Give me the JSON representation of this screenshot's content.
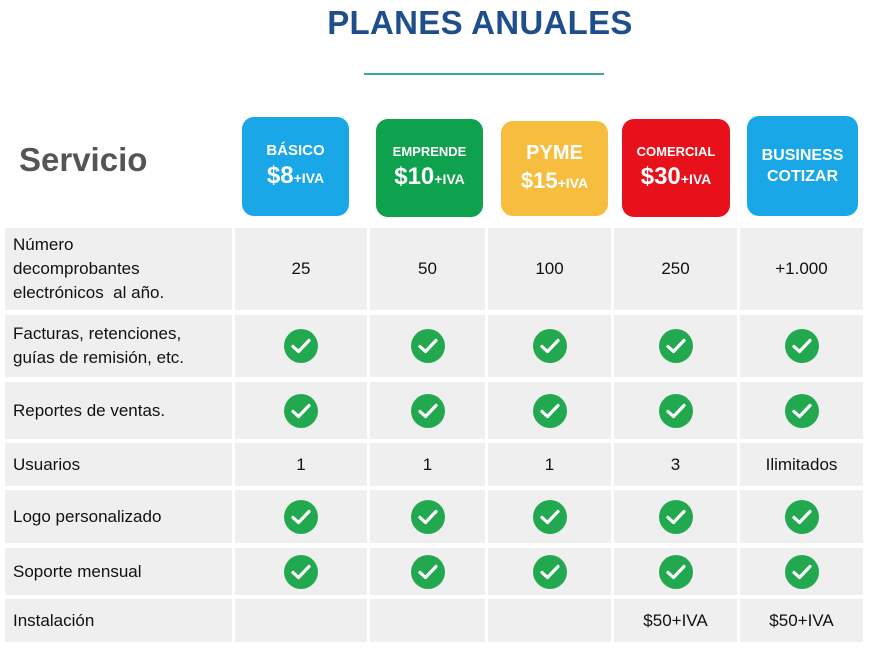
{
  "title": "PLANES ANUALES",
  "service_heading": "Servicio",
  "colors": {
    "title": "#1f4e8c",
    "check": "#22a94f"
  },
  "plans": [
    {
      "name": "BÁSICO",
      "price": "$8",
      "price_suffix": "+IVA",
      "color": "#1aa7e8"
    },
    {
      "name": "EMPRENDE",
      "price": "$10",
      "price_suffix": "+IVA",
      "color": "#0ea24e"
    },
    {
      "name": "PYME",
      "price": "$15",
      "price_suffix": "+IVA",
      "color": "#f7bd3e"
    },
    {
      "name": "COMERCIAL",
      "price": "$30",
      "price_suffix": "+IVA",
      "color": "#e8101a"
    },
    {
      "name": "BUSINESS",
      "price": "COTIZAR",
      "price_suffix": "",
      "color": "#1aa7e8"
    }
  ],
  "rows": [
    {
      "label_lines": [
        "Número",
        "decomprobantes",
        "electrónicos  al año."
      ],
      "values": [
        "25",
        "50",
        "100",
        "250",
        "+1.000"
      ]
    },
    {
      "label_lines": [
        "Facturas, retenciones,",
        "guías de remisión, etc."
      ],
      "values": [
        "check",
        "check",
        "check",
        "check",
        "check"
      ]
    },
    {
      "label_lines": [
        "Reportes de ventas."
      ],
      "values": [
        "check",
        "check",
        "check",
        "check",
        "check"
      ]
    },
    {
      "label_lines": [
        "Usuarios"
      ],
      "values": [
        "1",
        "1",
        "1",
        "3",
        "Ilimitados"
      ]
    },
    {
      "label_lines": [
        "Logo personalizado"
      ],
      "values": [
        "check",
        "check",
        "check",
        "check",
        "check"
      ]
    },
    {
      "label_lines": [
        "Soporte mensual"
      ],
      "values": [
        "check",
        "check",
        "check",
        "check",
        "check"
      ]
    },
    {
      "label_lines": [
        "Instalación"
      ],
      "values": [
        "",
        "",
        "",
        "$50+IVA",
        "$50+IVA"
      ]
    }
  ]
}
